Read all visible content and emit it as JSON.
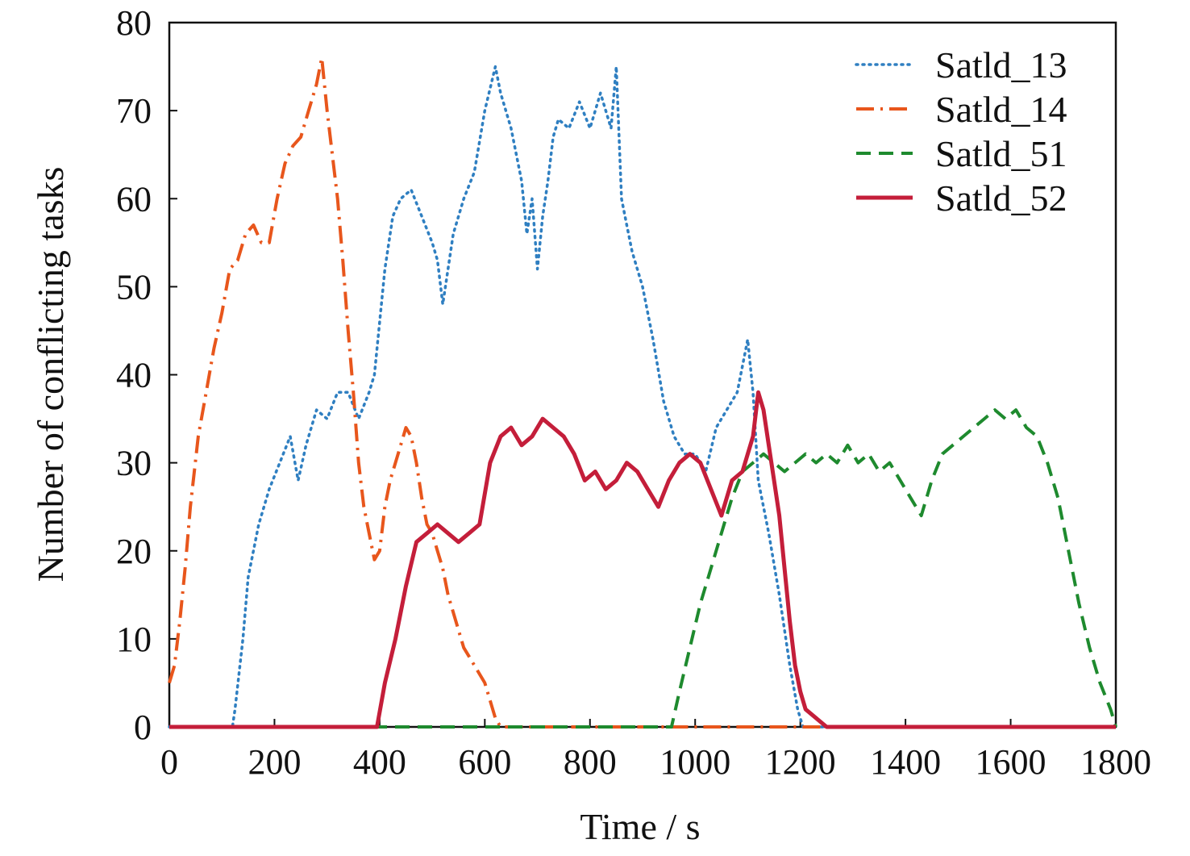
{
  "chart_data": {
    "type": "line",
    "title": "",
    "xlabel": "Time / s",
    "ylabel": "Number of conflicting tasks",
    "xlim": [
      0,
      1800
    ],
    "ylim": [
      0,
      80
    ],
    "xticks": [
      "0",
      "200",
      "400",
      "600",
      "800",
      "1000",
      "1200",
      "1400",
      "1600",
      "1800"
    ],
    "yticks": [
      "0",
      "10",
      "20",
      "30",
      "40",
      "50",
      "60",
      "70",
      "80"
    ],
    "grid": false,
    "legend_position": "top-right",
    "series": [
      {
        "name": "Satld_13",
        "color": "#2f7fc1",
        "dash": "dotted",
        "x": [
          0,
          120,
          125,
          140,
          150,
          170,
          190,
          210,
          230,
          245,
          260,
          280,
          300,
          320,
          340,
          360,
          380,
          390,
          410,
          425,
          440,
          460,
          480,
          500,
          510,
          520,
          530,
          540,
          550,
          560,
          580,
          600,
          620,
          630,
          650,
          670,
          680,
          690,
          700,
          710,
          720,
          730,
          740,
          760,
          780,
          800,
          820,
          840,
          850,
          860,
          870,
          880,
          900,
          920,
          940,
          960,
          980,
          1000,
          1020,
          1040,
          1060,
          1080,
          1090,
          1100,
          1110,
          1120,
          1140,
          1160,
          1180,
          1195,
          1205,
          1800
        ],
        "y": [
          0,
          0,
          2,
          10,
          17,
          23,
          27,
          30,
          33,
          28,
          32,
          36,
          35,
          38,
          38,
          35,
          38,
          40,
          52,
          58,
          60,
          61,
          58,
          55,
          53,
          48,
          52,
          56,
          58,
          60,
          63,
          70,
          75,
          72,
          68,
          62,
          56,
          60,
          52,
          58,
          62,
          67,
          69,
          68,
          71,
          68,
          72,
          68,
          75,
          60,
          57,
          54,
          50,
          44,
          37,
          33,
          31,
          31,
          29,
          34,
          36,
          38,
          41,
          44,
          38,
          28,
          22,
          15,
          7,
          2,
          0,
          0
        ]
      },
      {
        "name": "Satld_14",
        "color": "#e8561c",
        "dash": "dash-dot",
        "x": [
          0,
          10,
          20,
          30,
          40,
          55,
          70,
          85,
          100,
          115,
          130,
          145,
          160,
          175,
          190,
          205,
          220,
          235,
          250,
          265,
          280,
          290,
          300,
          310,
          320,
          330,
          340,
          350,
          360,
          370,
          380,
          390,
          400,
          410,
          420,
          430,
          440,
          450,
          460,
          470,
          480,
          490,
          500,
          510,
          520,
          530,
          540,
          550,
          560,
          570,
          580,
          590,
          600,
          610,
          620,
          630,
          1800
        ],
        "y": [
          5,
          7,
          12,
          18,
          25,
          33,
          38,
          43,
          47,
          52,
          53,
          56,
          57,
          55,
          55,
          60,
          64,
          66,
          67,
          70,
          73,
          76,
          70,
          65,
          60,
          53,
          45,
          38,
          30,
          25,
          22,
          19,
          20,
          25,
          28,
          30,
          32,
          34,
          33,
          30,
          26,
          23,
          22,
          20,
          18,
          15,
          13,
          11,
          9,
          8,
          7,
          6,
          5,
          3,
          1,
          0,
          0
        ]
      },
      {
        "name": "Satld_51",
        "color": "#1e8a2e",
        "dash": "dashed",
        "x": [
          0,
          955,
          970,
          990,
          1010,
          1030,
          1050,
          1070,
          1090,
          1110,
          1130,
          1150,
          1170,
          1190,
          1210,
          1230,
          1250,
          1270,
          1290,
          1310,
          1330,
          1350,
          1370,
          1390,
          1410,
          1430,
          1450,
          1470,
          1490,
          1510,
          1530,
          1550,
          1570,
          1590,
          1610,
          1630,
          1650,
          1670,
          1690,
          1710,
          1730,
          1750,
          1770,
          1790,
          1800
        ],
        "y": [
          0,
          0,
          4,
          9,
          14,
          18,
          22,
          26,
          29,
          30,
          31,
          30,
          29,
          30,
          31,
          30,
          31,
          30,
          32,
          30,
          31,
          29,
          30,
          28,
          26,
          24,
          28,
          31,
          32,
          33,
          34,
          35,
          36,
          35,
          36,
          34,
          33,
          30,
          26,
          20,
          14,
          9,
          5,
          2,
          0
        ]
      },
      {
        "name": "Satld_52",
        "color": "#c41e3a",
        "dash": "solid",
        "x": [
          0,
          395,
          410,
          430,
          450,
          470,
          490,
          510,
          530,
          550,
          570,
          590,
          610,
          630,
          650,
          670,
          690,
          710,
          730,
          750,
          770,
          790,
          810,
          830,
          850,
          870,
          890,
          910,
          930,
          950,
          970,
          990,
          1010,
          1030,
          1050,
          1070,
          1090,
          1110,
          1120,
          1130,
          1140,
          1150,
          1160,
          1170,
          1180,
          1190,
          1200,
          1210,
          1230,
          1250,
          1800
        ],
        "y": [
          0,
          0,
          5,
          10,
          16,
          21,
          22,
          23,
          22,
          21,
          22,
          23,
          30,
          33,
          34,
          32,
          33,
          35,
          34,
          33,
          31,
          28,
          29,
          27,
          28,
          30,
          29,
          27,
          25,
          28,
          30,
          31,
          30,
          27,
          24,
          28,
          29,
          33,
          38,
          36,
          32,
          28,
          24,
          18,
          12,
          7,
          4,
          2,
          1,
          0,
          0
        ]
      }
    ]
  }
}
